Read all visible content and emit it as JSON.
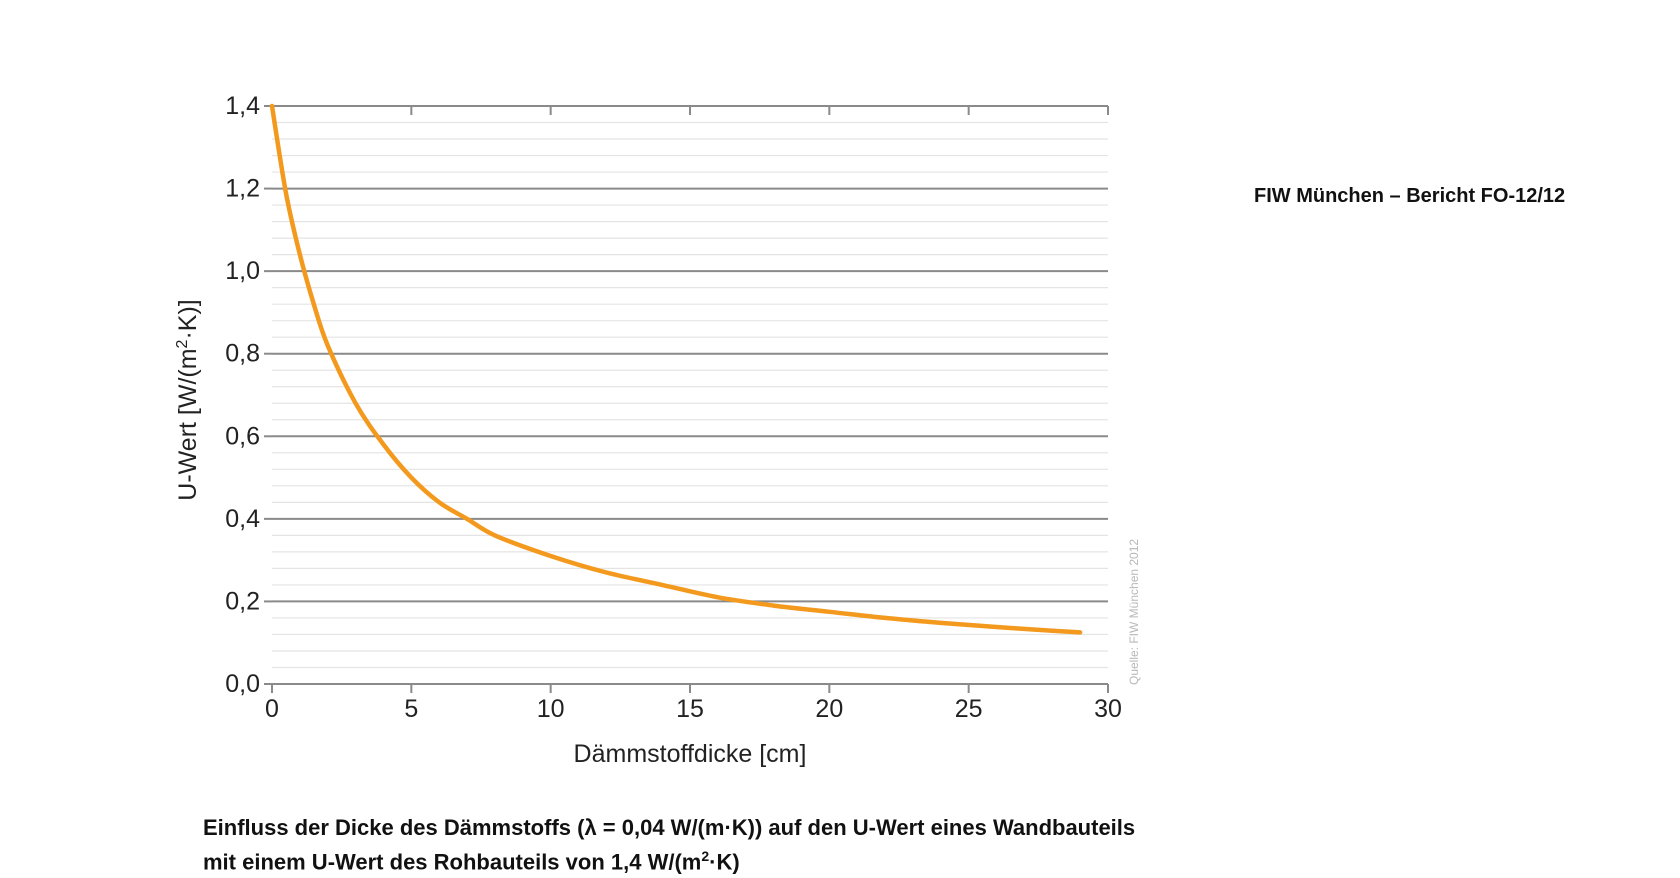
{
  "report_ref": "FIW München – Bericht FO-12/12",
  "caption": {
    "line1": "Einfluss der Dicke des Dämmstoffs (λ = 0,04 W/(m·K)) auf den U-Wert eines Wandbauteils",
    "line2_pre": "mit einem U-Wert des Rohbauteils von 1,4 W/(m",
    "line2_sup": "2",
    "line2_post": "·K)"
  },
  "chart_data": {
    "type": "line",
    "xlabel": "Dämmstoffdicke [cm]",
    "ylabel_pre": "U-Wert [W/(m",
    "ylabel_sup": "2",
    "ylabel_post": "·K)]",
    "source_note": "Quelle: FIW München 2012",
    "xlim": [
      0,
      30
    ],
    "ylim": [
      0,
      1.4
    ],
    "x_ticks": [
      0,
      5,
      10,
      15,
      20,
      25,
      30
    ],
    "x_tick_labels": [
      "0",
      "5",
      "10",
      "15",
      "20",
      "25",
      "30"
    ],
    "y_ticks": [
      0,
      0.2,
      0.4,
      0.6,
      0.8,
      1.0,
      1.2,
      1.4
    ],
    "y_tick_labels": [
      "0,0",
      "0,2",
      "0,4",
      "0,6",
      "0,8",
      "1,0",
      "1,2",
      "1,4"
    ],
    "grid": true,
    "series": [
      {
        "color": "#f39a1e",
        "x": [
          0,
          0.5,
          1,
          1.5,
          2,
          3,
          4,
          5,
          6,
          7,
          8,
          10,
          12,
          14,
          16,
          18,
          20,
          22,
          24,
          26,
          28,
          29
        ],
        "y": [
          1.4,
          1.19,
          1.04,
          0.92,
          0.82,
          0.68,
          0.58,
          0.5,
          0.44,
          0.4,
          0.36,
          0.31,
          0.27,
          0.24,
          0.21,
          0.19,
          0.175,
          0.16,
          0.148,
          0.138,
          0.129,
          0.125
        ]
      }
    ]
  }
}
